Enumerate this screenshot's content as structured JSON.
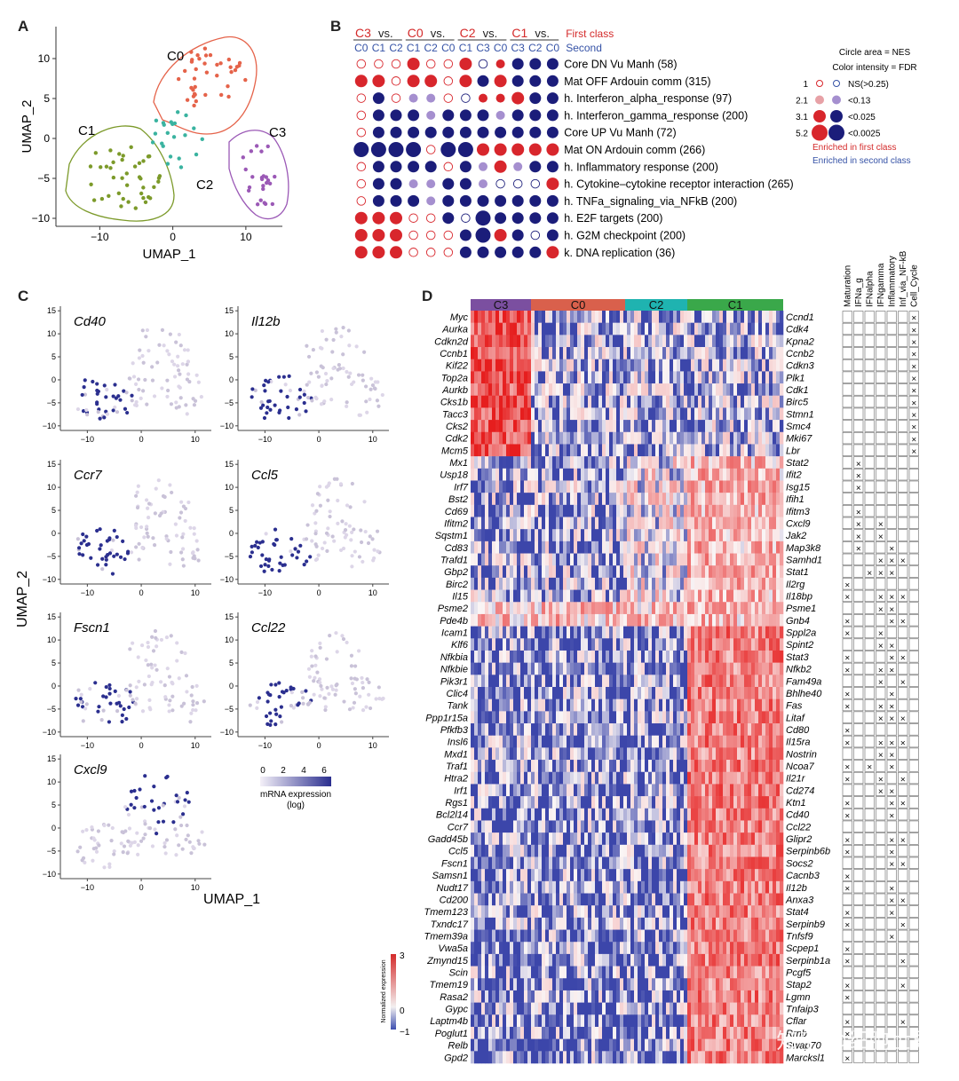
{
  "panels": {
    "a": "A",
    "b": "B",
    "c": "C",
    "d": "D"
  },
  "panelA": {
    "xlabel": "UMAP_1",
    "ylabel": "UMAP_2",
    "xticks": [
      "−10",
      "0",
      "10"
    ],
    "yticks": [
      "10",
      "5",
      "0",
      "−5",
      "−10"
    ],
    "clusters": [
      {
        "name": "C0",
        "color": "#e5634a"
      },
      {
        "name": "C1",
        "color": "#7c9a2a"
      },
      {
        "name": "C2",
        "color": "#3ab3a0"
      },
      {
        "name": "C3",
        "color": "#9b59b6"
      }
    ]
  },
  "panelB": {
    "first_class": "First class",
    "second_class": "Second",
    "groups": [
      {
        "first": "C3",
        "vs": "vs.",
        "seconds": [
          "C0",
          "C1",
          "C2"
        ]
      },
      {
        "first": "C0",
        "vs": "vs.",
        "seconds": [
          "C1",
          "C2",
          "C0"
        ]
      },
      {
        "first": "C2",
        "vs": "vs.",
        "seconds": [
          "C1",
          "C3",
          "C0"
        ]
      },
      {
        "first": "C1",
        "vs": "vs.",
        "seconds": [
          "C3",
          "C2",
          "C0"
        ]
      }
    ],
    "rows": [
      "Core DN Vu Manh (58)",
      "Mat OFF Ardouin comm (315)",
      "h. Interferon_alpha_response (97)",
      "h. Interferon_gamma_response (200)",
      "Core UP Vu Manh (72)",
      "Mat ON Ardouin comm (266)",
      "h. Inflammatory response (200)",
      "h. Cytokine–cytokine receptor interaction (265)",
      "h. TNFa_signaling_via_NFkB (200)",
      "h. E2F targets (200)",
      "h. G2M checkpoint (200)",
      "k. DNA replication (36)"
    ],
    "legend": {
      "circle_area": "Circle area = NES",
      "color_intensity": "Color intensity = FDR",
      "items": [
        {
          "nes": "1",
          "fdr": "NS(>0.25)"
        },
        {
          "nes": "2.1",
          "fdr": "<0.13"
        },
        {
          "nes": "3.1",
          "fdr": "<0.025"
        },
        {
          "nes": "5.2",
          "fdr": "<0.0025"
        }
      ],
      "enriched_first": "Enriched in first class",
      "enriched_second": "Enriched in second class"
    }
  },
  "panelC": {
    "genes": [
      "Cd40",
      "Il12b",
      "Ccr7",
      "Ccl5",
      "Fscn1",
      "Ccl22",
      "Cxcl9"
    ],
    "xlabel": "UMAP_1",
    "ylabel": "UMAP_2",
    "xticks": [
      "−10",
      "0",
      "10"
    ],
    "yticks": [
      "15",
      "10",
      "5",
      "0",
      "−5",
      "−10"
    ],
    "colorbar": {
      "ticks": [
        "0",
        "2",
        "4",
        "6"
      ],
      "title": "mRNA expression",
      "subtitle": "(log)"
    }
  },
  "panelD": {
    "clusters": [
      {
        "name": "C3",
        "color": "#7b4fa0"
      },
      {
        "name": "C0",
        "color": "#d9604c"
      },
      {
        "name": "C2",
        "color": "#1fb3b0"
      },
      {
        "name": "C1",
        "color": "#3aa84a"
      }
    ],
    "left_genes": [
      "Myc",
      "Aurka",
      "Cdkn2d",
      "Ccnb1",
      "Kif22",
      "Top2a",
      "Aurkb",
      "Cks1b",
      "Tacc3",
      "Cks2",
      "Cdk2",
      "Mcm5",
      "Mx1",
      "Usp18",
      "Irf7",
      "Bst2",
      "Cd69",
      "Ifitm2",
      "Sqstm1",
      "Cd83",
      "Trafd1",
      "Gbp2",
      "Birc2",
      "Il15",
      "Psme2",
      "Pde4b",
      "Icam1",
      "Klf6",
      "Nfkbia",
      "Nfkbie",
      "Pik3r1",
      "Clic4",
      "Tank",
      "Ppp1r15a",
      "Pfkfb3",
      "Insl6",
      "Mxd1",
      "Traf1",
      "Htra2",
      "Irf1",
      "Rgs1",
      "Bcl2l14",
      "Ccr7",
      "Gadd45b",
      "Ccl5",
      "Fscn1",
      "Samsn1",
      "Nudt17",
      "Cd200",
      "Tmem123",
      "Txndc17",
      "Tmem39a",
      "Vwa5a",
      "Zmynd15",
      "Scin",
      "Tmem19",
      "Rasa2",
      "Gypc",
      "Laptm4b",
      "Poglut1",
      "Relb",
      "Gpd2"
    ],
    "right_genes": [
      "Ccnd1",
      "Cdk4",
      "Kpna2",
      "Ccnb2",
      "Cdkn3",
      "Plk1",
      "Cdk1",
      "Birc5",
      "Stmn1",
      "Smc4",
      "Mki67",
      "Lbr",
      "Stat2",
      "Ifit2",
      "Isg15",
      "Ifih1",
      "Ifitm3",
      "Cxcl9",
      "Jak2",
      "Map3k8",
      "Samhd1",
      "Stat1",
      "Il2rg",
      "Il18bp",
      "Psme1",
      "Gnb4",
      "Sppl2a",
      "Spint2",
      "Stat3",
      "Nfkb2",
      "Fam49a",
      "Bhlhe40",
      "Fas",
      "Litaf",
      "Cd80",
      "Il15ra",
      "Nostrin",
      "Ncoa7",
      "Il21r",
      "Cd274",
      "Ktn1",
      "Cd40",
      "Ccl22",
      "Glipr2",
      "Serpinb6b",
      "Socs2",
      "Cacnb3",
      "Il12b",
      "Anxa3",
      "Stat4",
      "Serpinb9",
      "Tnfsf9",
      "Scpep1",
      "Serpinb1a",
      "Pcgf5",
      "Stap2",
      "Lgmn",
      "Tnfaip3",
      "Cflar",
      "Rrnb",
      "Swap70",
      "Marcksl1"
    ],
    "annotation_columns": [
      "Maturation",
      "IFNa_g",
      "IFNalpha",
      "IFNgamma",
      "Inflammatory",
      "Inf_via_NF-kB",
      "Cell_Cycle"
    ],
    "colorbar": {
      "title": "Normalized expression",
      "ticks": [
        "3",
        "0",
        "−1"
      ]
    }
  },
  "watermark": "知乎 @细胞世界"
}
